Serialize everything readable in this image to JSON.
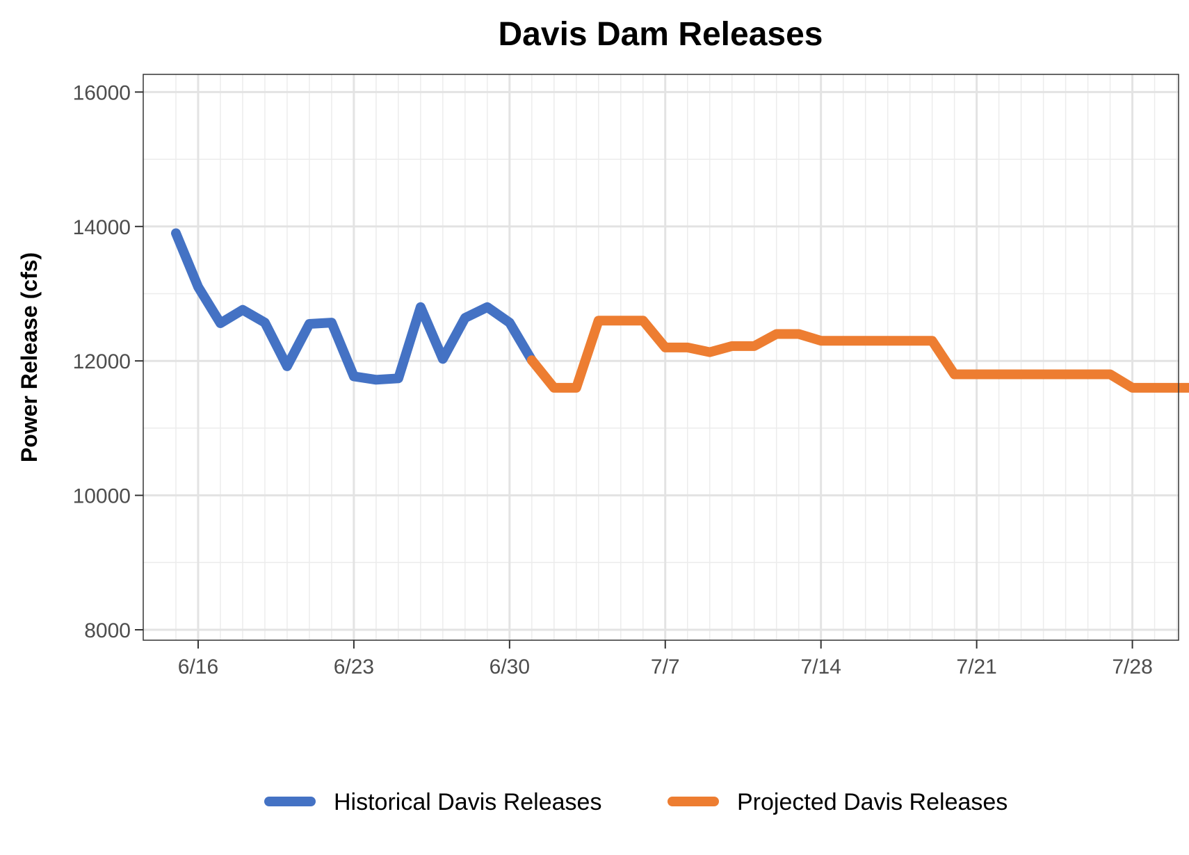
{
  "chart_data": {
    "type": "line",
    "title": "Davis Dam Releases",
    "xlabel": "",
    "ylabel": "Power Release (cfs)",
    "x_start_date": "6/15",
    "x_tick_labels": [
      "6/16",
      "6/23",
      "6/30",
      "7/7",
      "7/14",
      "7/21",
      "7/28"
    ],
    "ylim": [
      7850,
      16250
    ],
    "y_ticks": [
      8000,
      10000,
      12000,
      14000,
      16000
    ],
    "y_tick_labels": [
      "8000",
      "10000",
      "12000",
      "14000",
      "16000"
    ],
    "grid": true,
    "legend_position": "bottom",
    "series": [
      {
        "name": "Historical Davis Releases",
        "color": "#4472C4",
        "x": [
          "6/15",
          "6/16",
          "6/17",
          "6/18",
          "6/19",
          "6/20",
          "6/21",
          "6/22",
          "6/23",
          "6/24",
          "6/25",
          "6/26",
          "6/27",
          "6/28",
          "6/29",
          "6/30",
          "7/1"
        ],
        "values": [
          13900,
          13100,
          12560,
          12760,
          12570,
          11920,
          12550,
          12570,
          11770,
          11720,
          11740,
          12800,
          12030,
          12640,
          12800,
          12570,
          12010
        ]
      },
      {
        "name": "Projected Davis Releases",
        "color": "#ED7D31",
        "x": [
          "7/1",
          "7/2",
          "7/3",
          "7/4",
          "7/5",
          "7/6",
          "7/7",
          "7/8",
          "7/9",
          "7/10",
          "7/11",
          "7/12",
          "7/13",
          "7/14",
          "7/15",
          "7/16",
          "7/17",
          "7/18",
          "7/19",
          "7/20",
          "7/21",
          "7/22",
          "7/23",
          "7/24",
          "7/25",
          "7/26",
          "7/27",
          "7/28",
          "7/29",
          "7/30",
          "7/31"
        ],
        "values": [
          12010,
          11600,
          11600,
          12600,
          12600,
          12600,
          12200,
          12200,
          12130,
          12220,
          12220,
          12400,
          12400,
          12300,
          12300,
          12300,
          12300,
          12300,
          12300,
          11800,
          11800,
          11800,
          11800,
          11800,
          11800,
          11800,
          11800,
          11600,
          11600,
          11600,
          11600
        ]
      }
    ]
  }
}
